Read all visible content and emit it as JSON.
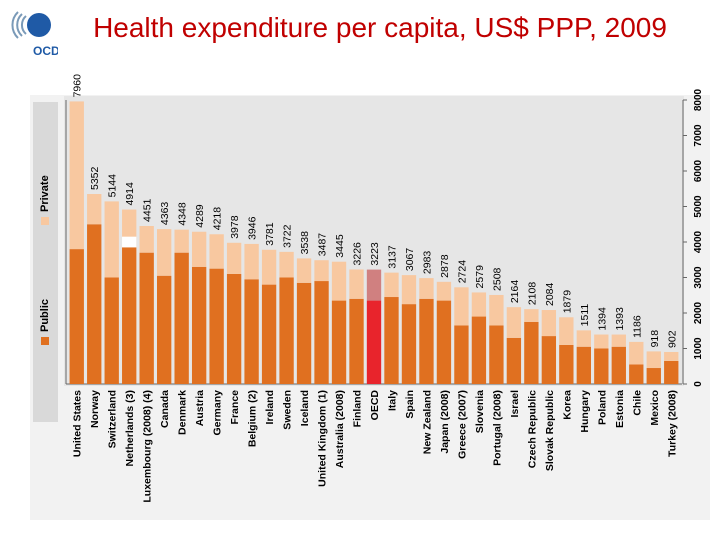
{
  "logo": {
    "text": "OCDE"
  },
  "title": "Health expenditure per capita, US$ PPP, 2009",
  "colors": {
    "public": "#e07020",
    "private": "#f8c8a0",
    "oecd_public": "#e8242c",
    "oecd_private": "#d08080",
    "title": "#c00000",
    "panel": "#d9d9d9"
  },
  "chart_data": {
    "type": "bar",
    "stacked": true,
    "orientation": "rotated-90",
    "categories": [
      "United States",
      "Norway",
      "Switzerland",
      "Netherlands (3)",
      "Luxembourg (2008) (4)",
      "Canada",
      "Denmark",
      "Austria",
      "Germany",
      "France",
      "Belgium (2)",
      "Ireland",
      "Sweden",
      "Iceland",
      "United Kingdom (1)",
      "Australia (2008)",
      "Finland",
      "OECD",
      "Italy",
      "Spain",
      "New Zealand",
      "Japan (2008)",
      "Greece (2007)",
      "Slovenia",
      "Portugal (2008)",
      "Israel",
      "Czech Republic",
      "Slovak Republic",
      "Korea",
      "Hungary",
      "Poland",
      "Estonia",
      "Chile",
      "Mexico",
      "Turkey (2008)"
    ],
    "totals": [
      7960,
      5352,
      5144,
      4914,
      4451,
      4363,
      4348,
      4289,
      4218,
      3978,
      3946,
      3781,
      3722,
      3538,
      3487,
      3445,
      3226,
      3223,
      3137,
      3067,
      2983,
      2878,
      2724,
      2579,
      2508,
      2164,
      2108,
      2084,
      1879,
      1511,
      1394,
      1393,
      1186,
      918,
      902
    ],
    "series": [
      {
        "name": "Public",
        "values": [
          3800,
          4500,
          3000,
          3850,
          3700,
          3050,
          3700,
          3300,
          3250,
          3100,
          2950,
          2800,
          3000,
          2850,
          2900,
          2350,
          2400,
          2350,
          2450,
          2250,
          2400,
          2350,
          1650,
          1900,
          1650,
          1300,
          1750,
          1350,
          1100,
          1050,
          1000,
          1050,
          550,
          450,
          650
        ]
      },
      {
        "name": "Private",
        "values": [
          4160,
          852,
          2144,
          1064,
          751,
          1313,
          648,
          989,
          968,
          878,
          996,
          981,
          722,
          688,
          587,
          1095,
          826,
          873,
          687,
          817,
          583,
          528,
          1074,
          679,
          858,
          864,
          358,
          734,
          779,
          461,
          394,
          343,
          636,
          468,
          252
        ]
      }
    ],
    "annotation_gap": {
      "category": "Netherlands (3)",
      "from": 3850,
      "to": 4150
    },
    "xlabel": "",
    "ylabel": "",
    "ylim": [
      0,
      8000
    ],
    "yticks": [
      0,
      1000,
      2000,
      3000,
      4000,
      5000,
      6000,
      7000,
      8000
    ],
    "grid": false,
    "legend": {
      "entries": [
        "Private",
        "Public"
      ],
      "placement": "left"
    },
    "highlight": "OECD"
  }
}
